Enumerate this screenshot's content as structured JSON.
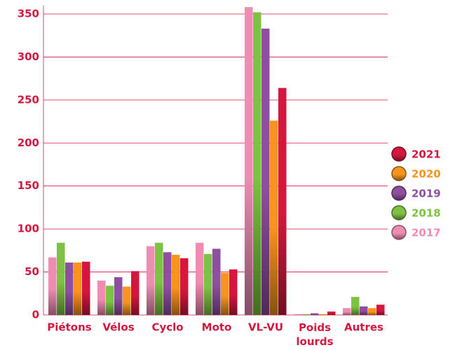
{
  "chart_data": {
    "type": "bar",
    "categories": [
      "Piétons",
      "Vélos",
      "Cyclo",
      "Moto",
      "VL-VU",
      "Poids lourds",
      "Autres"
    ],
    "series": [
      {
        "name": "2017",
        "color": "#f08cb4",
        "values": [
          67,
          40,
          80,
          84,
          358,
          1,
          8
        ]
      },
      {
        "name": "2018",
        "color": "#7dc242",
        "values": [
          84,
          34,
          84,
          71,
          352,
          1,
          21
        ]
      },
      {
        "name": "2019",
        "color": "#8e4fa0",
        "values": [
          61,
          44,
          73,
          77,
          333,
          2,
          10
        ]
      },
      {
        "name": "2020",
        "color": "#f7941d",
        "values": [
          61,
          33,
          70,
          49,
          226,
          1,
          8
        ]
      },
      {
        "name": "2021",
        "color": "#d5173f",
        "values": [
          62,
          51,
          66,
          53,
          264,
          4,
          12
        ]
      }
    ],
    "ylim": [
      0,
      360
    ],
    "yticks": [
      0,
      50,
      100,
      150,
      200,
      250,
      300,
      350
    ],
    "grid": true
  }
}
